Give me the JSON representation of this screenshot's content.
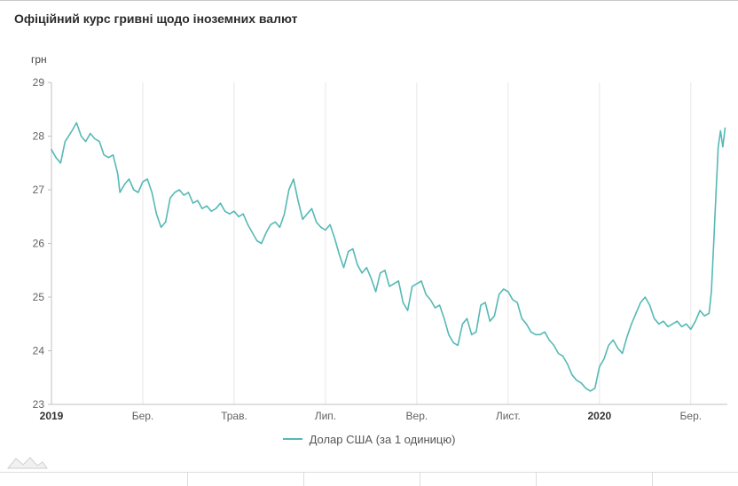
{
  "header": {
    "title": "Офіційний курс гривні щодо іноземних валют"
  },
  "colors": {
    "accent": "#55b9b5",
    "grid": "#e7e7e7",
    "axis": "#c0c0c0",
    "tick_text": "#616161",
    "year_text": "#333333",
    "title_text": "#2b2b2b"
  },
  "chart_data": {
    "type": "line",
    "title": "Офіційний курс гривні щодо іноземних валют",
    "xlabel": "",
    "ylabel": "грн",
    "ylim": [
      23,
      29
    ],
    "y_ticks": [
      23,
      24,
      25,
      26,
      27,
      28,
      29
    ],
    "x_unit": "months since 2019-01",
    "x_range_months": [
      0,
      14.8
    ],
    "grid": "vertical",
    "x_ticks": [
      {
        "label": "2019",
        "pos": 0,
        "bold": true
      },
      {
        "label": "Бер.",
        "pos": 2,
        "bold": false
      },
      {
        "label": "Трав.",
        "pos": 4,
        "bold": false
      },
      {
        "label": "Лип.",
        "pos": 6,
        "bold": false
      },
      {
        "label": "Вер.",
        "pos": 8,
        "bold": false
      },
      {
        "label": "Лист.",
        "pos": 10,
        "bold": false
      },
      {
        "label": "2020",
        "pos": 12,
        "bold": true
      },
      {
        "label": "Бер.",
        "pos": 14,
        "bold": false
      }
    ],
    "legend": {
      "position": "bottom",
      "entries": [
        {
          "label": "Долар США (за 1 одиницю)",
          "color": "#55b9b5"
        }
      ]
    },
    "series": [
      {
        "name": "Долар США (за 1 одиницю)",
        "color": "#55b9b5",
        "points": [
          [
            0,
            27.75
          ],
          [
            0.1,
            27.6
          ],
          [
            0.2,
            27.5
          ],
          [
            0.3,
            27.9
          ],
          [
            0.45,
            28.1
          ],
          [
            0.55,
            28.25
          ],
          [
            0.65,
            28.0
          ],
          [
            0.75,
            27.9
          ],
          [
            0.85,
            28.05
          ],
          [
            0.95,
            27.95
          ],
          [
            1.05,
            27.9
          ],
          [
            1.15,
            27.65
          ],
          [
            1.25,
            27.6
          ],
          [
            1.35,
            27.65
          ],
          [
            1.45,
            27.3
          ],
          [
            1.5,
            26.95
          ],
          [
            1.6,
            27.1
          ],
          [
            1.7,
            27.2
          ],
          [
            1.8,
            27.0
          ],
          [
            1.9,
            26.95
          ],
          [
            2.0,
            27.15
          ],
          [
            2.1,
            27.2
          ],
          [
            2.2,
            26.95
          ],
          [
            2.3,
            26.55
          ],
          [
            2.4,
            26.3
          ],
          [
            2.5,
            26.4
          ],
          [
            2.6,
            26.85
          ],
          [
            2.7,
            26.95
          ],
          [
            2.8,
            27.0
          ],
          [
            2.9,
            26.9
          ],
          [
            3.0,
            26.95
          ],
          [
            3.1,
            26.75
          ],
          [
            3.2,
            26.8
          ],
          [
            3.3,
            26.65
          ],
          [
            3.4,
            26.7
          ],
          [
            3.5,
            26.6
          ],
          [
            3.6,
            26.65
          ],
          [
            3.7,
            26.75
          ],
          [
            3.8,
            26.6
          ],
          [
            3.9,
            26.55
          ],
          [
            4.0,
            26.6
          ],
          [
            4.1,
            26.5
          ],
          [
            4.2,
            26.55
          ],
          [
            4.3,
            26.35
          ],
          [
            4.4,
            26.2
          ],
          [
            4.5,
            26.05
          ],
          [
            4.6,
            26.0
          ],
          [
            4.7,
            26.2
          ],
          [
            4.8,
            26.35
          ],
          [
            4.9,
            26.4
          ],
          [
            5.0,
            26.3
          ],
          [
            5.1,
            26.55
          ],
          [
            5.2,
            27.0
          ],
          [
            5.3,
            27.2
          ],
          [
            5.4,
            26.8
          ],
          [
            5.5,
            26.45
          ],
          [
            5.6,
            26.55
          ],
          [
            5.7,
            26.65
          ],
          [
            5.8,
            26.4
          ],
          [
            5.9,
            26.3
          ],
          [
            6.0,
            26.25
          ],
          [
            6.1,
            26.35
          ],
          [
            6.2,
            26.1
          ],
          [
            6.3,
            25.8
          ],
          [
            6.4,
            25.55
          ],
          [
            6.5,
            25.85
          ],
          [
            6.6,
            25.9
          ],
          [
            6.7,
            25.6
          ],
          [
            6.8,
            25.45
          ],
          [
            6.9,
            25.55
          ],
          [
            7.0,
            25.35
          ],
          [
            7.1,
            25.1
          ],
          [
            7.2,
            25.45
          ],
          [
            7.3,
            25.5
          ],
          [
            7.4,
            25.2
          ],
          [
            7.5,
            25.25
          ],
          [
            7.6,
            25.3
          ],
          [
            7.7,
            24.9
          ],
          [
            7.8,
            24.75
          ],
          [
            7.9,
            25.2
          ],
          [
            8.0,
            25.25
          ],
          [
            8.1,
            25.3
          ],
          [
            8.2,
            25.05
          ],
          [
            8.3,
            24.95
          ],
          [
            8.4,
            24.8
          ],
          [
            8.5,
            24.85
          ],
          [
            8.6,
            24.6
          ],
          [
            8.7,
            24.3
          ],
          [
            8.8,
            24.15
          ],
          [
            8.9,
            24.1
          ],
          [
            9.0,
            24.5
          ],
          [
            9.1,
            24.6
          ],
          [
            9.2,
            24.3
          ],
          [
            9.3,
            24.35
          ],
          [
            9.4,
            24.85
          ],
          [
            9.5,
            24.9
          ],
          [
            9.6,
            24.55
          ],
          [
            9.7,
            24.65
          ],
          [
            9.8,
            25.05
          ],
          [
            9.9,
            25.15
          ],
          [
            10.0,
            25.1
          ],
          [
            10.1,
            24.95
          ],
          [
            10.2,
            24.9
          ],
          [
            10.3,
            24.6
          ],
          [
            10.4,
            24.5
          ],
          [
            10.5,
            24.35
          ],
          [
            10.6,
            24.3
          ],
          [
            10.7,
            24.3
          ],
          [
            10.8,
            24.35
          ],
          [
            10.9,
            24.2
          ],
          [
            11.0,
            24.1
          ],
          [
            11.1,
            23.95
          ],
          [
            11.2,
            23.9
          ],
          [
            11.3,
            23.75
          ],
          [
            11.4,
            23.55
          ],
          [
            11.5,
            23.45
          ],
          [
            11.6,
            23.4
          ],
          [
            11.7,
            23.3
          ],
          [
            11.8,
            23.25
          ],
          [
            11.9,
            23.3
          ],
          [
            12.0,
            23.7
          ],
          [
            12.1,
            23.85
          ],
          [
            12.2,
            24.1
          ],
          [
            12.3,
            24.2
          ],
          [
            12.4,
            24.05
          ],
          [
            12.5,
            23.95
          ],
          [
            12.6,
            24.25
          ],
          [
            12.7,
            24.5
          ],
          [
            12.8,
            24.7
          ],
          [
            12.9,
            24.9
          ],
          [
            13.0,
            25.0
          ],
          [
            13.1,
            24.85
          ],
          [
            13.2,
            24.6
          ],
          [
            13.3,
            24.5
          ],
          [
            13.4,
            24.55
          ],
          [
            13.5,
            24.45
          ],
          [
            13.6,
            24.5
          ],
          [
            13.7,
            24.55
          ],
          [
            13.8,
            24.45
          ],
          [
            13.9,
            24.5
          ],
          [
            14.0,
            24.4
          ],
          [
            14.1,
            24.55
          ],
          [
            14.2,
            24.75
          ],
          [
            14.3,
            24.65
          ],
          [
            14.4,
            24.7
          ],
          [
            14.45,
            25.1
          ],
          [
            14.5,
            26.0
          ],
          [
            14.55,
            26.9
          ],
          [
            14.6,
            27.8
          ],
          [
            14.65,
            28.1
          ],
          [
            14.7,
            27.8
          ],
          [
            14.75,
            28.15
          ]
        ]
      }
    ]
  }
}
